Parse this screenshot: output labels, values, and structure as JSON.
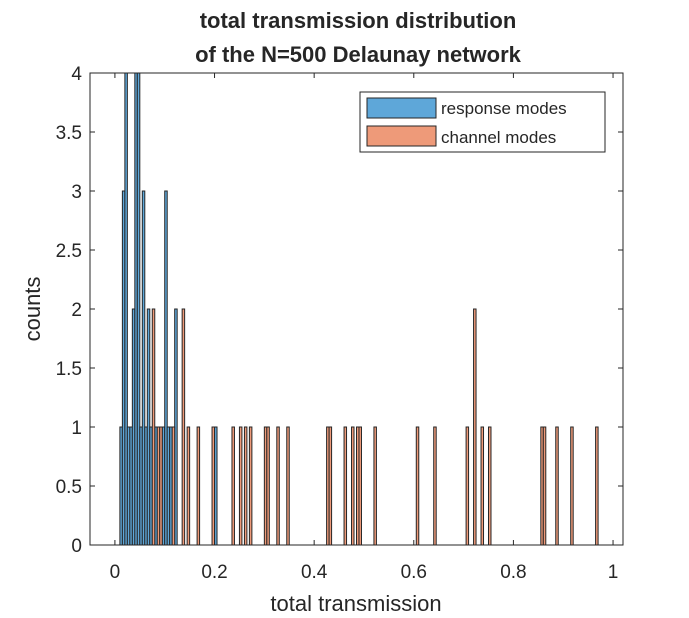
{
  "chart_data": {
    "type": "bar",
    "title": [
      "total transmission distribution",
      "of the N=500 Delaunay network"
    ],
    "xlabel": "total transmission",
    "ylabel": "counts",
    "xlim": [
      -0.05,
      1.02
    ],
    "ylim": [
      0,
      4
    ],
    "xticks": [
      "0",
      "0.2",
      "0.4",
      "0.6",
      "0.8",
      "1"
    ],
    "xtick_values": [
      0,
      0.2,
      0.4,
      0.6,
      0.8,
      1
    ],
    "yticks": [
      "0",
      "0.5",
      "1",
      "1.5",
      "2",
      "2.5",
      "3",
      "3.5",
      "4"
    ],
    "ytick_values": [
      0,
      0.5,
      1,
      1.5,
      2,
      2.5,
      3,
      3.5,
      4
    ],
    "bin_width": 0.005,
    "grid": false,
    "legend_position": "top-right",
    "series": [
      {
        "name": "response modes",
        "color": "#5ea7d9",
        "bins": [
          {
            "x": 0.01,
            "count": 1
          },
          {
            "x": 0.015,
            "count": 3
          },
          {
            "x": 0.02,
            "count": 4
          },
          {
            "x": 0.025,
            "count": 1
          },
          {
            "x": 0.03,
            "count": 1
          },
          {
            "x": 0.035,
            "count": 2
          },
          {
            "x": 0.04,
            "count": 4
          },
          {
            "x": 0.045,
            "count": 4
          },
          {
            "x": 0.05,
            "count": 1
          },
          {
            "x": 0.055,
            "count": 3
          },
          {
            "x": 0.06,
            "count": 1
          },
          {
            "x": 0.065,
            "count": 2
          },
          {
            "x": 0.07,
            "count": 1
          },
          {
            "x": 0.08,
            "count": 1
          },
          {
            "x": 0.095,
            "count": 1
          },
          {
            "x": 0.1,
            "count": 3
          },
          {
            "x": 0.105,
            "count": 1
          },
          {
            "x": 0.11,
            "count": 1
          },
          {
            "x": 0.12,
            "count": 2
          },
          {
            "x": 0.2,
            "count": 1
          }
        ]
      },
      {
        "name": "channel modes",
        "color": "#ee9a79",
        "bins": [
          {
            "x": 0.075,
            "count": 2
          },
          {
            "x": 0.085,
            "count": 1
          },
          {
            "x": 0.09,
            "count": 1
          },
          {
            "x": 0.115,
            "count": 1
          },
          {
            "x": 0.135,
            "count": 2
          },
          {
            "x": 0.145,
            "count": 1
          },
          {
            "x": 0.165,
            "count": 1
          },
          {
            "x": 0.195,
            "count": 1
          },
          {
            "x": 0.235,
            "count": 1
          },
          {
            "x": 0.25,
            "count": 1
          },
          {
            "x": 0.26,
            "count": 1
          },
          {
            "x": 0.27,
            "count": 1
          },
          {
            "x": 0.3,
            "count": 1
          },
          {
            "x": 0.305,
            "count": 1
          },
          {
            "x": 0.325,
            "count": 1
          },
          {
            "x": 0.345,
            "count": 1
          },
          {
            "x": 0.425,
            "count": 1
          },
          {
            "x": 0.43,
            "count": 1
          },
          {
            "x": 0.46,
            "count": 1
          },
          {
            "x": 0.475,
            "count": 1
          },
          {
            "x": 0.485,
            "count": 1
          },
          {
            "x": 0.49,
            "count": 1
          },
          {
            "x": 0.52,
            "count": 1
          },
          {
            "x": 0.605,
            "count": 1
          },
          {
            "x": 0.64,
            "count": 1
          },
          {
            "x": 0.705,
            "count": 1
          },
          {
            "x": 0.72,
            "count": 2
          },
          {
            "x": 0.735,
            "count": 1
          },
          {
            "x": 0.75,
            "count": 1
          },
          {
            "x": 0.855,
            "count": 1
          },
          {
            "x": 0.86,
            "count": 1
          },
          {
            "x": 0.885,
            "count": 1
          },
          {
            "x": 0.915,
            "count": 1
          },
          {
            "x": 0.965,
            "count": 1
          }
        ]
      }
    ]
  }
}
